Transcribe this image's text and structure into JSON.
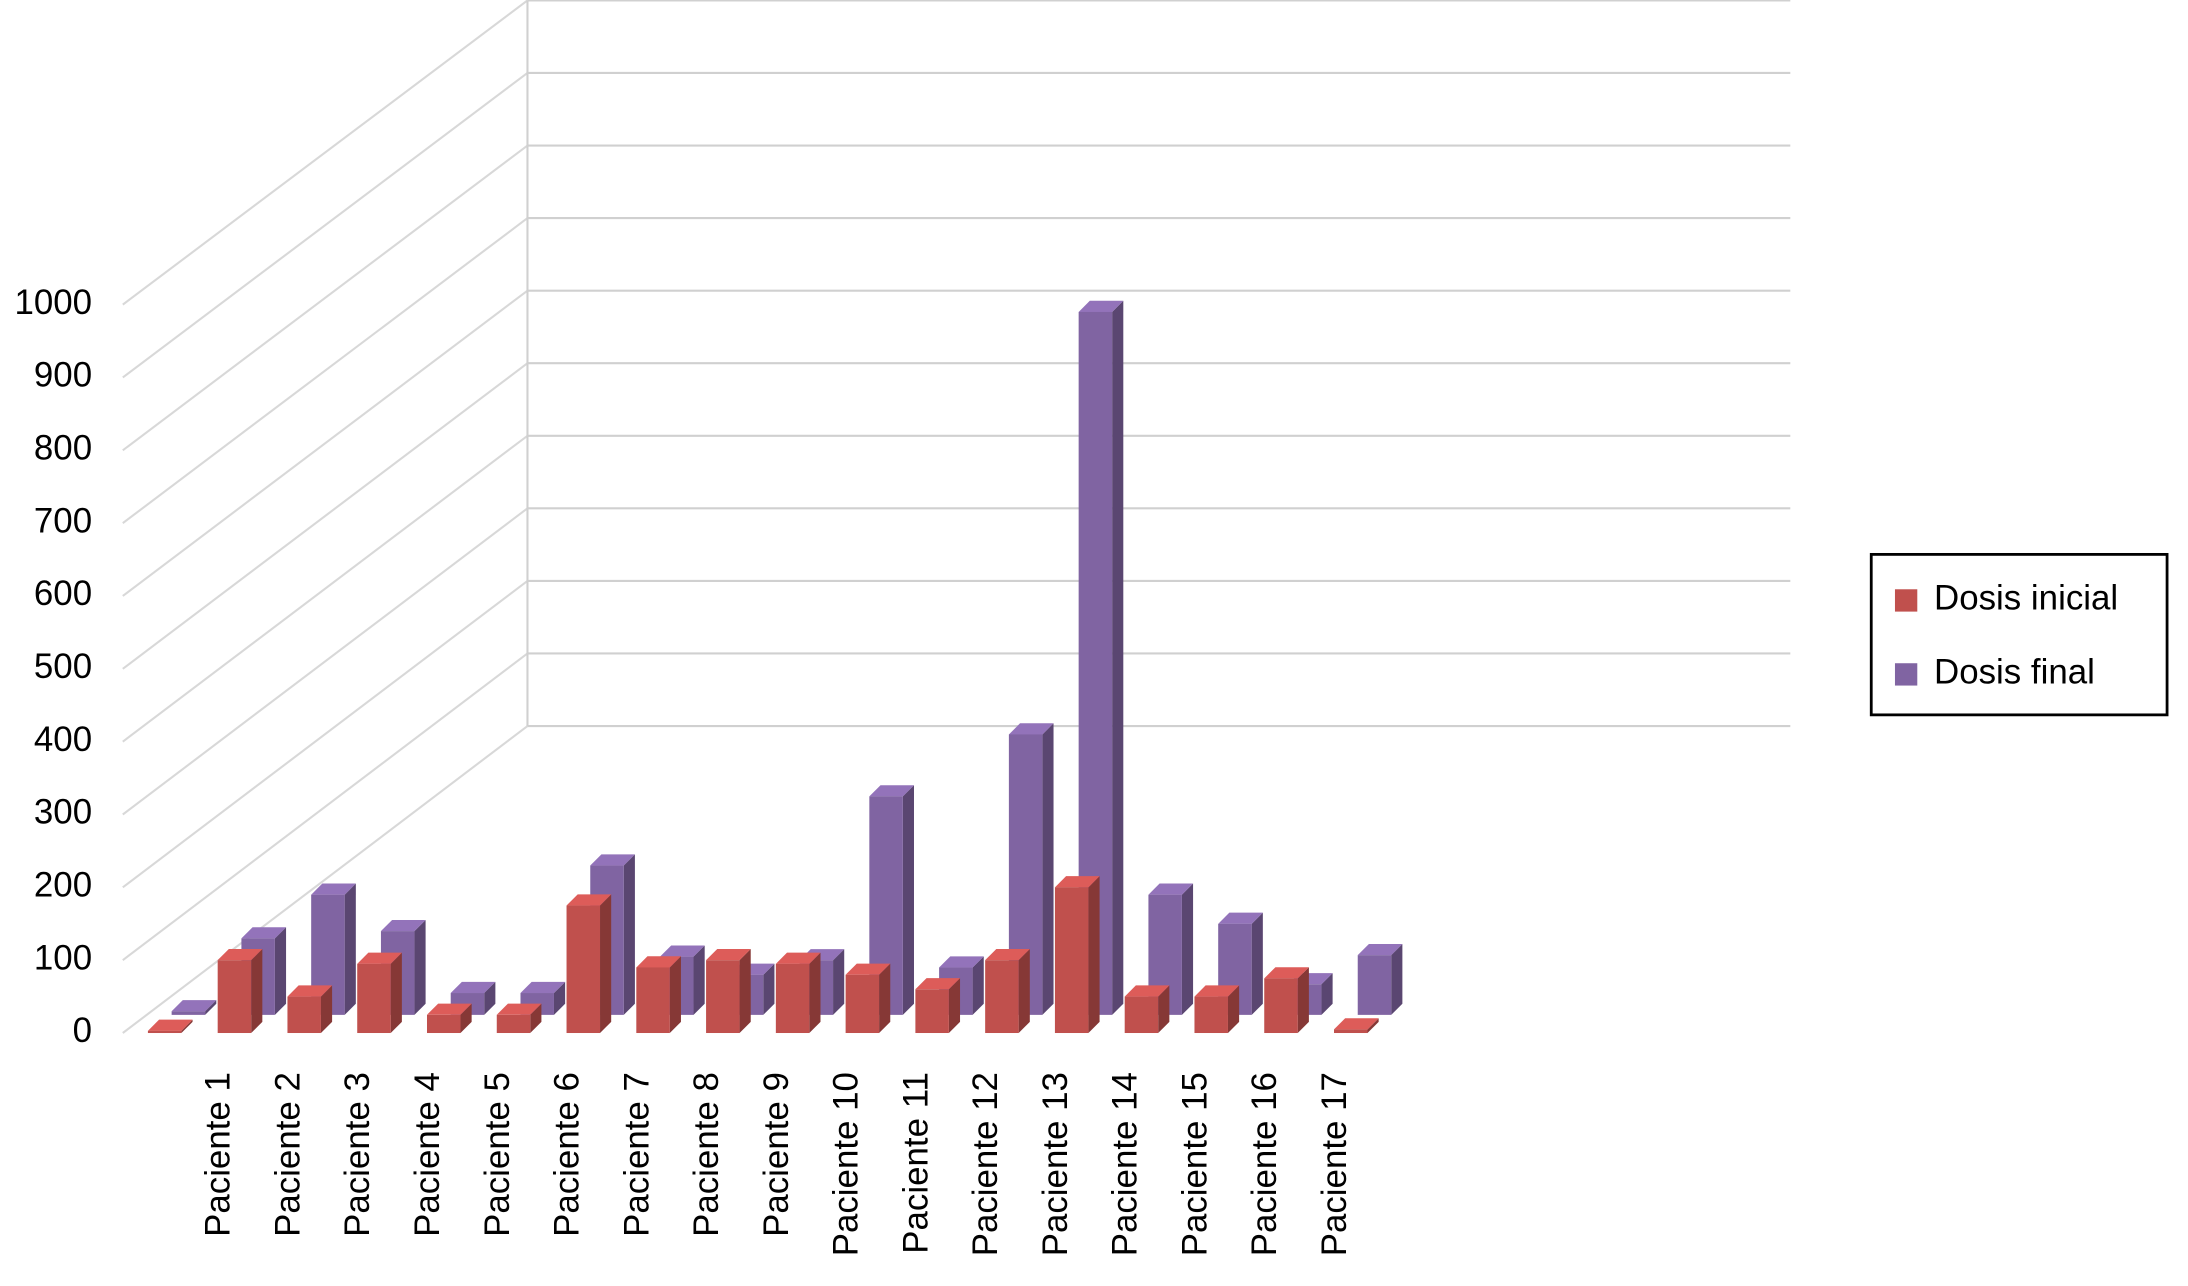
{
  "chart_data": {
    "type": "bar3d",
    "categories": [
      null,
      "Paciente 1",
      "Paciente 2",
      "Paciente 3",
      "Paciente 4",
      "Paciente 5",
      "Paciente 6",
      "Paciente 7",
      "Paciente 8",
      "Paciente 9",
      "Paciente 10",
      "Paciente 11",
      "Paciente 12",
      "Paciente 13",
      "Paciente 14",
      "Paciente 15",
      "Paciente 16",
      "Paciente 17"
    ],
    "series": [
      {
        "name": "Dosis inicial",
        "color": "#c0504d",
        "values": [
          3,
          100,
          50,
          95,
          25,
          25,
          175,
          90,
          100,
          95,
          80,
          60,
          100,
          200,
          50,
          50,
          75,
          5
        ]
      },
      {
        "name": "Dosis final",
        "color": "#8064a2",
        "values": [
          5,
          105,
          165,
          115,
          30,
          30,
          205,
          80,
          55,
          75,
          300,
          65,
          385,
          965,
          165,
          125,
          42,
          82
        ]
      }
    ],
    "ylim": [
      0,
      1000
    ],
    "yticks": [
      0,
      100,
      200,
      300,
      400,
      500,
      600,
      700,
      800,
      900,
      1000
    ],
    "grid": true,
    "legend": "right"
  }
}
